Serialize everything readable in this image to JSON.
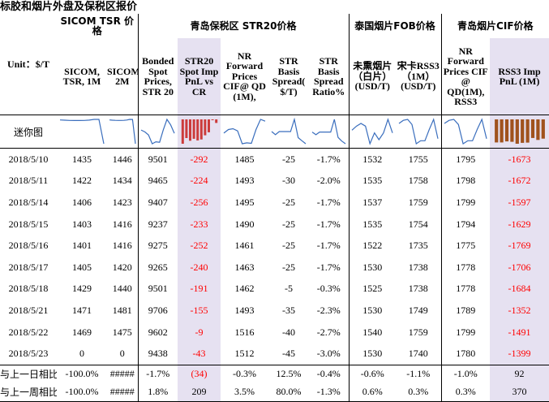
{
  "page_title": "标胶和烟片外盘及保税区报价",
  "groups": {
    "sicom": "SICOM TSR 价格",
    "qingdao_str20": "青岛保税区 STR20价格",
    "thai_fob": "泰国烟片FOB价格",
    "qingdao_cif": "青岛烟片CIF价格"
  },
  "header": {
    "unit_label": "Unit：$/T",
    "sicom_1m": "SICOM, TSR, 1M",
    "sicom_2m": "SICOM,TSR, 2M",
    "bonded_spot": "Bonded Spot Prices, STR 20",
    "str20_spot_imp_pnl": "STR20 Spot Imp PnL vs CR",
    "nr_forward_qd": "NR Forward Prices CIF@ QD (1M),",
    "str_basis_spread": "STR Basis Spread( $/T)",
    "str_basis_ratio": "STR Basis Spread Ratio%",
    "raw_smoked": "未熏烟片（白片）(USD/T)",
    "rss3_fob": "宋卡RSS3（1M）(USD/T)",
    "nr_forward_rss3": "NR Forward Prices CIF @ QD(1M), RSS3",
    "rss3_imp_pnl": "RSS3 Imp PnL (1M)"
  },
  "mini_chart_label": "迷你图",
  "rows": [
    {
      "date": "2018/5/10",
      "sicom_1m": "1435",
      "sicom_2m": "1446",
      "bonded": "9501",
      "imp_pnl": "-292",
      "nr_fwd": "1485",
      "spread": "-25",
      "ratio": "-1.7%",
      "white": "1532",
      "rss3_fob": "1755",
      "nr_rss3": "1795",
      "rss3_pnl": "-1673"
    },
    {
      "date": "2018/5/11",
      "sicom_1m": "1422",
      "sicom_2m": "1434",
      "bonded": "9465",
      "imp_pnl": "-224",
      "nr_fwd": "1493",
      "spread": "-30",
      "ratio": "-2.0%",
      "white": "1535",
      "rss3_fob": "1758",
      "nr_rss3": "1798",
      "rss3_pnl": "-1672"
    },
    {
      "date": "2018/5/14",
      "sicom_1m": "1406",
      "sicom_2m": "1423",
      "bonded": "9407",
      "imp_pnl": "-256",
      "nr_fwd": "1495",
      "spread": "-25",
      "ratio": "-1.7%",
      "white": "1537",
      "rss3_fob": "1759",
      "nr_rss3": "1799",
      "rss3_pnl": "-1597"
    },
    {
      "date": "2018/5/15",
      "sicom_1m": "1403",
      "sicom_2m": "1416",
      "bonded": "9237",
      "imp_pnl": "-233",
      "nr_fwd": "1490",
      "spread": "-25",
      "ratio": "-1.7%",
      "white": "1535",
      "rss3_fob": "1754",
      "nr_rss3": "1794",
      "rss3_pnl": "-1629"
    },
    {
      "date": "2018/5/16",
      "sicom_1m": "1401",
      "sicom_2m": "1416",
      "bonded": "9275",
      "imp_pnl": "-252",
      "nr_fwd": "1461",
      "spread": "-25",
      "ratio": "-1.7%",
      "white": "1522",
      "rss3_fob": "1735",
      "nr_rss3": "1775",
      "rss3_pnl": "-1769"
    },
    {
      "date": "2018/5/17",
      "sicom_1m": "1405",
      "sicom_2m": "1420",
      "bonded": "9265",
      "imp_pnl": "-240",
      "nr_fwd": "1463",
      "spread": "-25",
      "ratio": "-1.7%",
      "white": "1530",
      "rss3_fob": "1738",
      "nr_rss3": "1778",
      "rss3_pnl": "-1706"
    },
    {
      "date": "2018/5/18",
      "sicom_1m": "1429",
      "sicom_2m": "1440",
      "bonded": "9501",
      "imp_pnl": "-191",
      "nr_fwd": "1462",
      "spread": "-5",
      "ratio": "-0.3%",
      "white": "1525",
      "rss3_fob": "1738",
      "nr_rss3": "1778",
      "rss3_pnl": "-1684"
    },
    {
      "date": "2018/5/21",
      "sicom_1m": "1471",
      "sicom_2m": "1481",
      "bonded": "9706",
      "imp_pnl": "-155",
      "nr_fwd": "1493",
      "spread": "-35",
      "ratio": "-2.3%",
      "white": "1530",
      "rss3_fob": "1749",
      "nr_rss3": "1789",
      "rss3_pnl": "-1352"
    },
    {
      "date": "2018/5/22",
      "sicom_1m": "1469",
      "sicom_2m": "1475",
      "bonded": "9602",
      "imp_pnl": "-9",
      "nr_fwd": "1516",
      "spread": "-40",
      "ratio": "-2.7%",
      "white": "1540",
      "rss3_fob": "1759",
      "nr_rss3": "1799",
      "rss3_pnl": "-1491"
    },
    {
      "date": "2018/5/23",
      "sicom_1m": "0",
      "sicom_2m": "0",
      "bonded": "9438",
      "imp_pnl": "-43",
      "nr_fwd": "1512",
      "spread": "-45",
      "ratio": "-3.0%",
      "white": "1530",
      "rss3_fob": "1740",
      "nr_rss3": "1780",
      "rss3_pnl": "-1399"
    }
  ],
  "footer": [
    {
      "label": "与上一日相比",
      "sicom_1m": "-100.0%",
      "sicom_2m": "#####",
      "bonded": "-1.7%",
      "imp_pnl": "(34)",
      "nr_fwd": "-0.3%",
      "spread": "12.5%",
      "ratio": "-0.4%",
      "white": "-0.6%",
      "rss3_fob": "-1.1%",
      "nr_rss3": "-1.0%",
      "rss3_pnl": "92"
    },
    {
      "label": "与上一周相比",
      "sicom_1m": "-100.0%",
      "sicom_2m": "#####",
      "bonded": "1.8%",
      "imp_pnl": "209",
      "nr_fwd": "3.5%",
      "spread": "80.0%",
      "ratio": "-1.3%",
      "white": "0.6%",
      "rss3_fob": "0.3%",
      "nr_rss3": "0.3%",
      "rss3_pnl": "370"
    }
  ],
  "colors": {
    "negative": "#ff0000",
    "bar_red": "#cc3b3b",
    "bar_brown": "#a0521d",
    "highlight": "#e6e1f1",
    "sparkline": "#3a6ebd"
  }
}
